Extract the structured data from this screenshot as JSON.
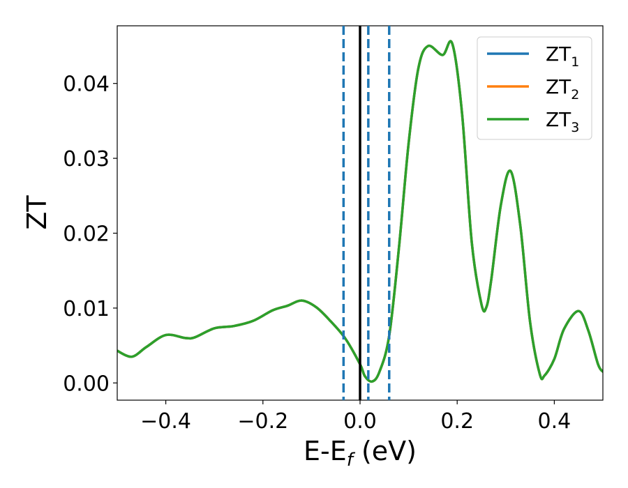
{
  "chart_data": {
    "type": "line",
    "title": "",
    "xlabel": {
      "main": "E-E",
      "sub": "f",
      "unit": " (eV)"
    },
    "ylabel": "ZT",
    "xlim": [
      -0.5,
      0.5
    ],
    "ylim": [
      -0.0023,
      0.0477
    ],
    "x_ticks": [
      -0.4,
      -0.2,
      0.0,
      0.2,
      0.4
    ],
    "x_tick_labels": [
      "−0.4",
      "−0.2",
      "0.0",
      "0.2",
      "0.4"
    ],
    "y_ticks": [
      0.0,
      0.01,
      0.02,
      0.03,
      0.04
    ],
    "y_tick_labels": [
      "0.00",
      "0.01",
      "0.02",
      "0.03",
      "0.04"
    ],
    "grid": false,
    "legend_position": "top-right",
    "fermi_line": {
      "x": 0.0,
      "color": "#000000",
      "style": "solid"
    },
    "reference_lines": [
      {
        "x": -0.034,
        "color": "#1f77b4",
        "style": "dashed"
      },
      {
        "x": 0.017,
        "color": "#1f77b4",
        "style": "dashed"
      },
      {
        "x": 0.06,
        "color": "#1f77b4",
        "style": "dashed"
      }
    ],
    "x": [
      -0.5,
      -0.47,
      -0.44,
      -0.4,
      -0.36,
      -0.34,
      -0.3,
      -0.26,
      -0.22,
      -0.18,
      -0.15,
      -0.12,
      -0.09,
      -0.06,
      -0.03,
      0.0,
      0.01,
      0.025,
      0.04,
      0.06,
      0.08,
      0.1,
      0.12,
      0.14,
      0.17,
      0.19,
      0.21,
      0.23,
      0.25,
      0.26,
      0.27,
      0.29,
      0.31,
      0.33,
      0.35,
      0.37,
      0.38,
      0.4,
      0.42,
      0.45,
      0.47,
      0.49,
      0.5
    ],
    "series": [
      {
        "name": {
          "main": "ZT",
          "sub": "1"
        },
        "color": "#1f77b4",
        "values": [
          0.0043,
          0.0035,
          0.0048,
          0.0064,
          0.006,
          0.0061,
          0.0073,
          0.0076,
          0.0083,
          0.0097,
          0.0103,
          0.011,
          0.0101,
          0.0082,
          0.0059,
          0.0025,
          0.0009,
          0.0002,
          0.0015,
          0.0063,
          0.018,
          0.032,
          0.042,
          0.045,
          0.0438,
          0.0453,
          0.036,
          0.0188,
          0.0105,
          0.0101,
          0.0137,
          0.0238,
          0.0283,
          0.021,
          0.0082,
          0.0012,
          0.001,
          0.0032,
          0.0072,
          0.0096,
          0.007,
          0.0025,
          0.0015
        ]
      },
      {
        "name": {
          "main": "ZT",
          "sub": "2"
        },
        "color": "#ff7f0e",
        "values": [
          0.0043,
          0.0035,
          0.0048,
          0.0064,
          0.006,
          0.0061,
          0.0073,
          0.0076,
          0.0083,
          0.0097,
          0.0103,
          0.011,
          0.0101,
          0.0082,
          0.0059,
          0.0025,
          0.0009,
          0.0002,
          0.0015,
          0.0063,
          0.018,
          0.032,
          0.042,
          0.045,
          0.0438,
          0.0453,
          0.036,
          0.0188,
          0.0105,
          0.0101,
          0.0137,
          0.0238,
          0.0283,
          0.021,
          0.0082,
          0.0012,
          0.001,
          0.0032,
          0.0072,
          0.0096,
          0.007,
          0.0025,
          0.0015
        ]
      },
      {
        "name": {
          "main": "ZT",
          "sub": "3"
        },
        "color": "#2ca02c",
        "values": [
          0.0043,
          0.0035,
          0.0048,
          0.0064,
          0.006,
          0.0061,
          0.0073,
          0.0076,
          0.0083,
          0.0097,
          0.0103,
          0.011,
          0.0101,
          0.0082,
          0.0059,
          0.0025,
          0.0009,
          0.0002,
          0.0015,
          0.0063,
          0.018,
          0.032,
          0.042,
          0.045,
          0.0438,
          0.0453,
          0.036,
          0.0188,
          0.0105,
          0.0101,
          0.0137,
          0.0238,
          0.0283,
          0.021,
          0.0082,
          0.0012,
          0.001,
          0.0032,
          0.0072,
          0.0096,
          0.007,
          0.0025,
          0.0015
        ]
      }
    ]
  }
}
